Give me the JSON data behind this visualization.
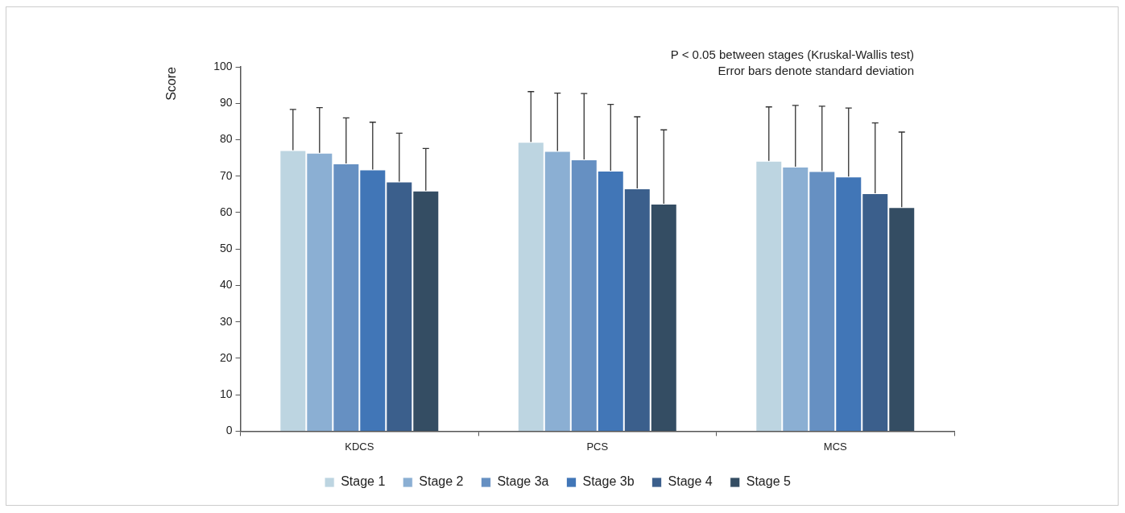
{
  "chart_data": {
    "type": "bar",
    "ylabel": "Score",
    "categories": [
      "KDCS",
      "PCS",
      "MCS"
    ],
    "series": [
      {
        "name": "Stage 1",
        "color": "#bdd5e1",
        "values": [
          77.1,
          79.4,
          74.2
        ],
        "errors": [
          [
            77.1,
            88.3
          ],
          [
            79.4,
            93.2
          ],
          [
            74.2,
            89.0
          ]
        ]
      },
      {
        "name": "Stage 2",
        "color": "#8bafd3",
        "values": [
          76.4,
          76.9,
          72.6
        ],
        "errors": [
          [
            76.4,
            88.8
          ],
          [
            76.9,
            92.8
          ],
          [
            72.6,
            89.4
          ]
        ]
      },
      {
        "name": "Stage 3a",
        "color": "#6690c2",
        "values": [
          73.5,
          74.6,
          71.4
        ],
        "errors": [
          [
            73.5,
            86.0
          ],
          [
            74.6,
            92.7
          ],
          [
            71.4,
            89.2
          ]
        ]
      },
      {
        "name": "Stage 3b",
        "color": "#4176b7",
        "values": [
          71.8,
          71.5,
          69.9
        ],
        "errors": [
          [
            71.8,
            84.8
          ],
          [
            71.5,
            89.7
          ],
          [
            69.9,
            88.7
          ]
        ]
      },
      {
        "name": "Stage 4",
        "color": "#3b5f8c",
        "values": [
          68.5,
          66.6,
          65.3
        ],
        "errors": [
          [
            68.5,
            81.8
          ],
          [
            66.6,
            86.3
          ],
          [
            65.3,
            84.6
          ]
        ]
      },
      {
        "name": "Stage 5",
        "color": "#344d63",
        "values": [
          66.0,
          62.4,
          61.5
        ],
        "errors": [
          [
            66.0,
            77.6
          ],
          [
            62.4,
            82.7
          ],
          [
            61.5,
            82.1
          ]
        ]
      }
    ],
    "ylim": [
      0,
      100
    ],
    "yticks": [
      0,
      10,
      20,
      30,
      40,
      50,
      60,
      70,
      80,
      90,
      100
    ],
    "grid": false,
    "legend": "bottom",
    "annotations": [
      "P < 0.05 between stages (Kruskal-Wallis test)",
      "Error bars denote standard deviation"
    ]
  }
}
